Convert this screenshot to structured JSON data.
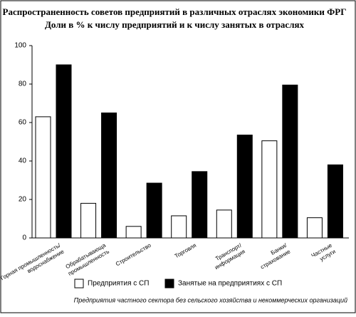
{
  "chart_data": {
    "type": "bar",
    "title": "Распространенность советов предприятий в различных отраслях экономики ФРГ",
    "subtitle": "Доли в % к числу предприятий и к числу занятых в отраслях",
    "categories": [
      [
        "Горная промышленность/",
        "водоснабжение"
      ],
      [
        "Обрабатывающа",
        "промышленность"
      ],
      [
        "Строительство"
      ],
      [
        "Торговля"
      ],
      [
        "Транспорт/",
        "информация"
      ],
      [
        "Банки/",
        "страхование"
      ],
      [
        "Частные",
        "услуги"
      ]
    ],
    "series": [
      {
        "name": "Предприятия с СП",
        "color": "#ffffff",
        "values": [
          63,
          18,
          6,
          11.5,
          14.5,
          50.5,
          10.5
        ]
      },
      {
        "name": "Занятые на предприятиях с СП",
        "color": "#000000",
        "values": [
          90,
          65,
          28.5,
          34.5,
          53.5,
          79.5,
          38
        ]
      }
    ],
    "ylim": [
      0,
      100
    ],
    "yticks": [
      0,
      20,
      40,
      60,
      80,
      100
    ],
    "footnote": "Предприятия частного сектора без сельского хозяйства и некоммерческих организаций"
  }
}
